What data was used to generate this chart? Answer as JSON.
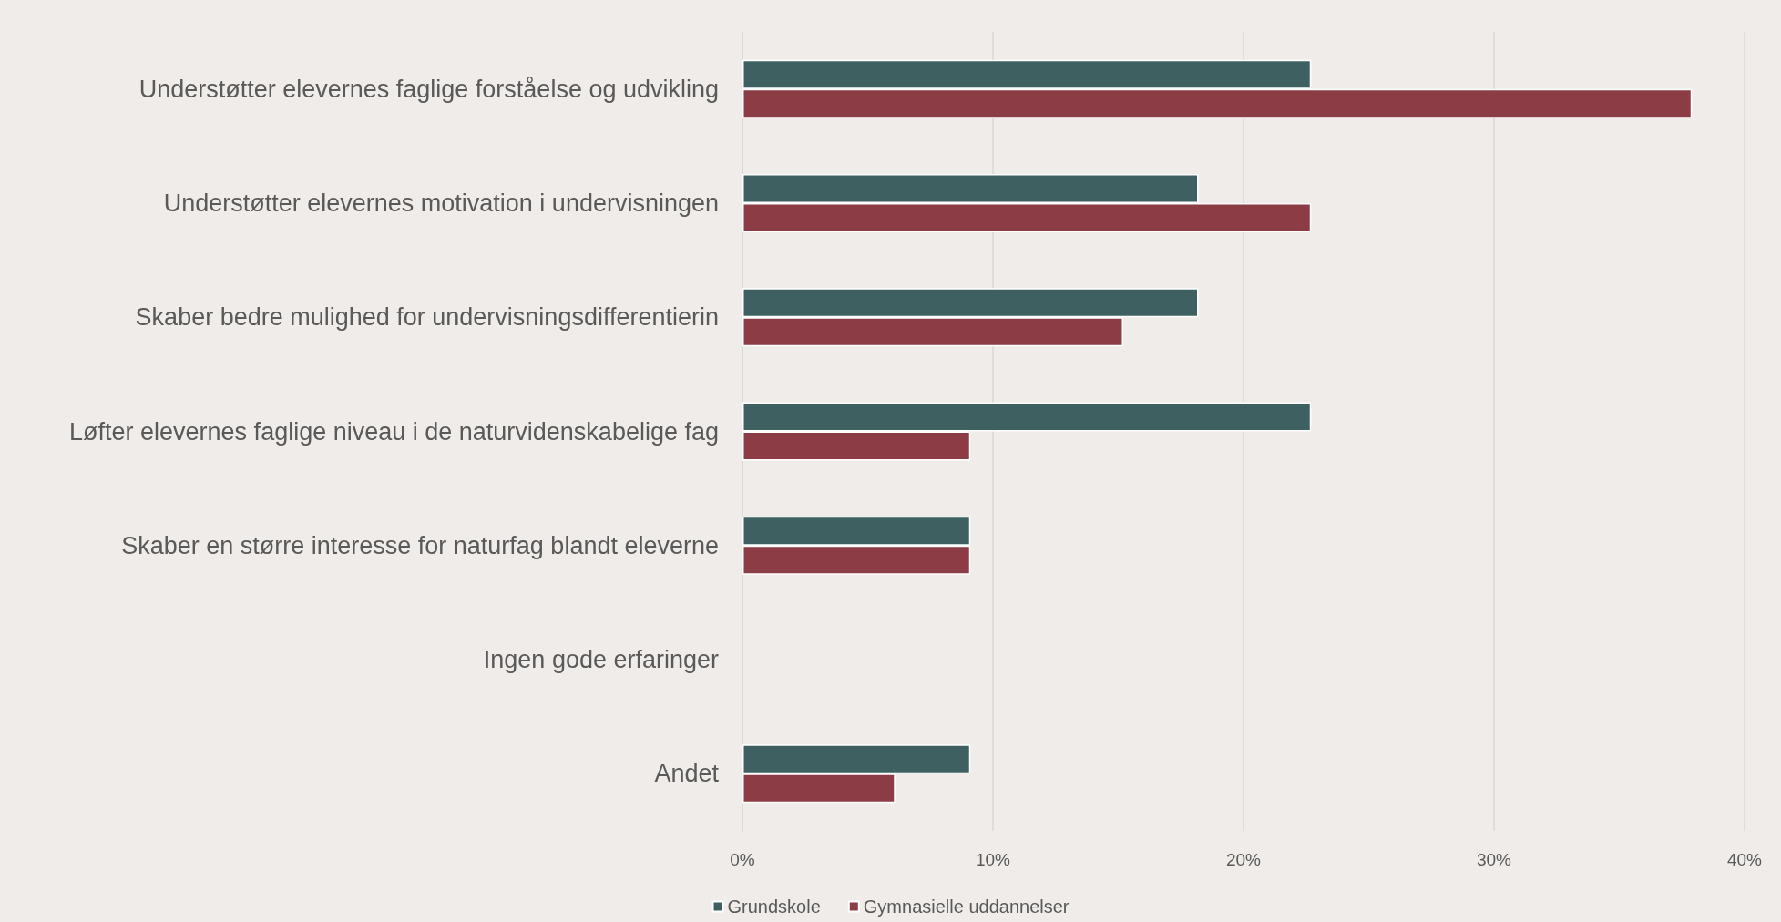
{
  "chart_data": {
    "type": "bar",
    "orientation": "horizontal",
    "categories": [
      "Understøtter elevernes faglige forståelse og udvikling",
      "Understøtter elevernes motivation i undervisningen",
      "Skaber bedre mulighed for undervisningsdifferentierin",
      "Løfter elevernes faglige niveau i de naturvidenskabelige fag",
      "Skaber en større interesse for naturfag blandt eleverne",
      "Ingen gode erfaringer",
      "Andet"
    ],
    "series": [
      {
        "name": "Grundskole",
        "color": "#3f6060",
        "values": [
          22.7,
          18.2,
          18.2,
          22.7,
          9.1,
          0,
          9.1
        ]
      },
      {
        "name": "Gymnasielle uddannelser",
        "color": "#8b3c44",
        "values": [
          37.9,
          22.7,
          15.2,
          9.1,
          9.1,
          0,
          6.1
        ]
      }
    ],
    "xlim": [
      0,
      40
    ],
    "xticks": [
      {
        "value": 0,
        "label": "0%"
      },
      {
        "value": 10,
        "label": "10%"
      },
      {
        "value": 20,
        "label": "20%"
      },
      {
        "value": 30,
        "label": "30%"
      },
      {
        "value": 40,
        "label": "40%"
      }
    ],
    "grid": "x",
    "legend": "bottom"
  }
}
